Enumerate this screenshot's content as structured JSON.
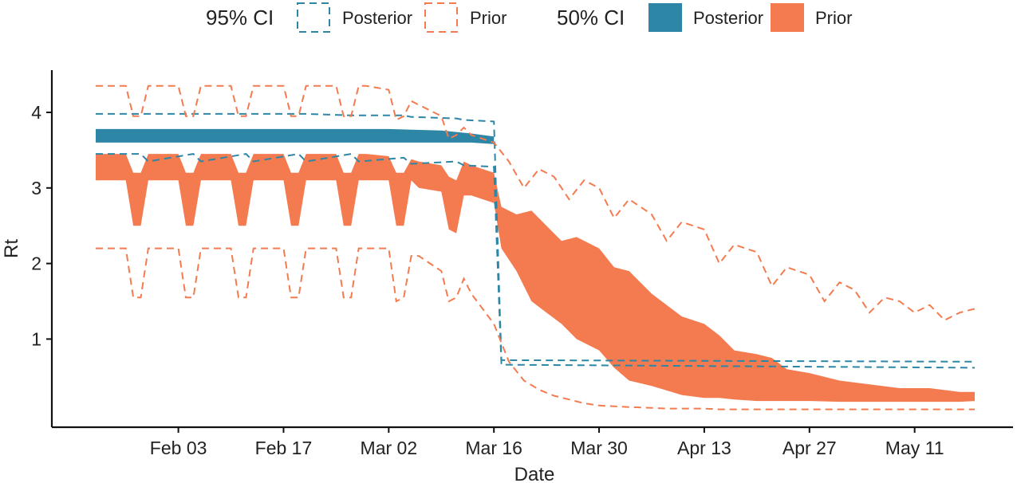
{
  "chart_data": {
    "type": "area",
    "xlabel": "Date",
    "ylabel": "Rt",
    "x_range": [
      "2020-01-23",
      "2020-05-19"
    ],
    "ylim": [
      0,
      4.5
    ],
    "x_ticks": [
      {
        "date": "2020-02-03",
        "label": "Feb 03"
      },
      {
        "date": "2020-02-17",
        "label": "Feb 17"
      },
      {
        "date": "2020-03-02",
        "label": "Mar 02"
      },
      {
        "date": "2020-03-16",
        "label": "Mar 16"
      },
      {
        "date": "2020-03-30",
        "label": "Mar 30"
      },
      {
        "date": "2020-04-13",
        "label": "Apr 13"
      },
      {
        "date": "2020-04-27",
        "label": "Apr 27"
      },
      {
        "date": "2020-05-11",
        "label": "May 11"
      }
    ],
    "y_ticks": [
      {
        "value": 1,
        "label": "1"
      },
      {
        "value": 2,
        "label": "2"
      },
      {
        "value": 3,
        "label": "3"
      },
      {
        "value": 4,
        "label": "4"
      }
    ],
    "grid": false,
    "legend": {
      "position": "top",
      "groups": [
        {
          "title": "95% CI",
          "style": "dashed",
          "items": [
            {
              "label": "Posterior",
              "color": "#2e86a6"
            },
            {
              "label": "Prior",
              "color": "#f47b4f"
            }
          ]
        },
        {
          "title": "50% CI",
          "style": "filled",
          "items": [
            {
              "label": "Posterior",
              "color": "#2e86a6"
            },
            {
              "label": "Prior",
              "color": "#f47b4f"
            }
          ]
        }
      ]
    },
    "series": [
      {
        "name": "Prior",
        "interval": "50% CI",
        "style": "filled",
        "color": "#f47b4f",
        "x": [
          "2020-01-23",
          "2020-01-27",
          "2020-01-28",
          "2020-01-29",
          "2020-01-30",
          "2020-01-31",
          "2020-02-03",
          "2020-02-04",
          "2020-02-05",
          "2020-02-06",
          "2020-02-07",
          "2020-02-10",
          "2020-02-11",
          "2020-02-12",
          "2020-02-13",
          "2020-02-14",
          "2020-02-17",
          "2020-02-18",
          "2020-02-19",
          "2020-02-20",
          "2020-02-21",
          "2020-02-24",
          "2020-02-25",
          "2020-02-26",
          "2020-02-27",
          "2020-02-28",
          "2020-03-02",
          "2020-03-03",
          "2020-03-04",
          "2020-03-05",
          "2020-03-06",
          "2020-03-09",
          "2020-03-10",
          "2020-03-11",
          "2020-03-12",
          "2020-03-13",
          "2020-03-16",
          "2020-03-17",
          "2020-03-19",
          "2020-03-21",
          "2020-03-23",
          "2020-03-25",
          "2020-03-27",
          "2020-03-30",
          "2020-04-01",
          "2020-04-03",
          "2020-04-06",
          "2020-04-08",
          "2020-04-10",
          "2020-04-13",
          "2020-04-15",
          "2020-04-17",
          "2020-04-20",
          "2020-04-22",
          "2020-04-24",
          "2020-04-27",
          "2020-05-01",
          "2020-05-05",
          "2020-05-09",
          "2020-05-13",
          "2020-05-17",
          "2020-05-19"
        ],
        "lower": [
          3.1,
          3.1,
          2.5,
          2.5,
          3.1,
          3.1,
          3.1,
          2.5,
          2.5,
          3.1,
          3.1,
          3.1,
          2.5,
          2.5,
          3.1,
          3.1,
          3.1,
          2.5,
          2.5,
          3.1,
          3.1,
          3.1,
          2.5,
          2.5,
          3.1,
          3.1,
          3.1,
          2.5,
          2.5,
          3.1,
          3.0,
          2.95,
          2.45,
          2.4,
          2.9,
          2.9,
          2.8,
          2.2,
          1.9,
          1.5,
          1.35,
          1.2,
          1.0,
          0.85,
          0.62,
          0.45,
          0.38,
          0.32,
          0.26,
          0.22,
          0.22,
          0.2,
          0.18,
          0.18,
          0.18,
          0.18,
          0.17,
          0.17,
          0.17,
          0.17,
          0.17,
          0.18
        ],
        "upper": [
          3.45,
          3.45,
          3.2,
          3.2,
          3.45,
          3.45,
          3.45,
          3.2,
          3.2,
          3.45,
          3.45,
          3.45,
          3.2,
          3.2,
          3.45,
          3.45,
          3.45,
          3.2,
          3.2,
          3.45,
          3.45,
          3.45,
          3.2,
          3.2,
          3.45,
          3.45,
          3.42,
          3.2,
          3.2,
          3.38,
          3.35,
          3.3,
          3.15,
          3.1,
          3.35,
          3.3,
          3.2,
          2.75,
          2.65,
          2.7,
          2.5,
          2.3,
          2.35,
          2.2,
          1.95,
          1.9,
          1.6,
          1.45,
          1.3,
          1.2,
          1.05,
          0.85,
          0.8,
          0.75,
          0.6,
          0.55,
          0.45,
          0.4,
          0.35,
          0.35,
          0.3,
          0.3
        ]
      },
      {
        "name": "Posterior",
        "interval": "50% CI",
        "style": "filled",
        "color": "#2e86a6",
        "x": [
          "2020-01-23",
          "2020-02-14",
          "2020-03-02",
          "2020-03-09",
          "2020-03-13",
          "2020-03-16"
        ],
        "lower": [
          3.6,
          3.6,
          3.6,
          3.6,
          3.6,
          3.58
        ],
        "upper": [
          3.78,
          3.78,
          3.78,
          3.76,
          3.72,
          3.68
        ]
      },
      {
        "name": "Posterior",
        "interval": "95% CI",
        "style": "dashed",
        "color": "#2e86a6",
        "x": [
          "2020-01-23",
          "2020-01-29",
          "2020-01-30",
          "2020-02-05",
          "2020-02-06",
          "2020-02-12",
          "2020-02-13",
          "2020-02-19",
          "2020-02-20",
          "2020-02-26",
          "2020-02-27",
          "2020-03-04",
          "2020-03-05",
          "2020-03-11",
          "2020-03-12",
          "2020-03-16",
          "2020-03-17",
          "2020-05-19"
        ],
        "lower": [
          3.45,
          3.45,
          3.35,
          3.45,
          3.35,
          3.45,
          3.35,
          3.45,
          3.35,
          3.45,
          3.35,
          3.4,
          3.32,
          3.35,
          3.3,
          3.28,
          0.66,
          0.62
        ],
        "upper": [
          3.98,
          3.98,
          3.98,
          3.98,
          3.98,
          3.98,
          3.98,
          3.98,
          3.98,
          3.96,
          3.96,
          3.96,
          3.94,
          3.92,
          3.9,
          3.88,
          0.72,
          0.7
        ]
      },
      {
        "name": "Prior",
        "interval": "95% CI",
        "style": "dashed",
        "color": "#f47b4f",
        "x": [
          "2020-01-23",
          "2020-01-27",
          "2020-01-28",
          "2020-01-29",
          "2020-01-30",
          "2020-01-31",
          "2020-02-03",
          "2020-02-04",
          "2020-02-05",
          "2020-02-06",
          "2020-02-07",
          "2020-02-10",
          "2020-02-11",
          "2020-02-12",
          "2020-02-13",
          "2020-02-14",
          "2020-02-17",
          "2020-02-18",
          "2020-02-19",
          "2020-02-20",
          "2020-02-21",
          "2020-02-24",
          "2020-02-25",
          "2020-02-26",
          "2020-02-27",
          "2020-02-28",
          "2020-03-02",
          "2020-03-03",
          "2020-03-04",
          "2020-03-05",
          "2020-03-06",
          "2020-03-09",
          "2020-03-10",
          "2020-03-11",
          "2020-03-12",
          "2020-03-13",
          "2020-03-16",
          "2020-03-18",
          "2020-03-20",
          "2020-03-22",
          "2020-03-24",
          "2020-03-26",
          "2020-03-28",
          "2020-03-30",
          "2020-04-01",
          "2020-04-03",
          "2020-04-06",
          "2020-04-08",
          "2020-04-10",
          "2020-04-13",
          "2020-04-15",
          "2020-04-17",
          "2020-04-20",
          "2020-04-22",
          "2020-04-24",
          "2020-04-27",
          "2020-04-29",
          "2020-05-01",
          "2020-05-03",
          "2020-05-05",
          "2020-05-07",
          "2020-05-09",
          "2020-05-11",
          "2020-05-13",
          "2020-05-15",
          "2020-05-17",
          "2020-05-19"
        ],
        "lower": [
          2.2,
          2.2,
          1.55,
          1.55,
          2.2,
          2.2,
          2.2,
          1.55,
          1.55,
          2.2,
          2.2,
          2.2,
          1.55,
          1.55,
          2.2,
          2.2,
          2.2,
          1.55,
          1.55,
          2.2,
          2.2,
          2.2,
          1.55,
          1.55,
          2.2,
          2.2,
          2.2,
          1.5,
          1.55,
          2.1,
          2.1,
          1.9,
          1.5,
          1.55,
          1.8,
          1.6,
          1.2,
          0.7,
          0.45,
          0.33,
          0.25,
          0.2,
          0.15,
          0.12,
          0.11,
          0.1,
          0.09,
          0.08,
          0.08,
          0.08,
          0.07,
          0.07,
          0.07,
          0.07,
          0.07,
          0.07,
          0.07,
          0.07,
          0.07,
          0.07,
          0.07,
          0.07,
          0.07,
          0.07,
          0.07,
          0.07,
          0.07
        ],
        "upper": [
          4.35,
          4.35,
          3.95,
          3.95,
          4.35,
          4.35,
          4.35,
          3.95,
          3.95,
          4.35,
          4.35,
          4.35,
          3.95,
          3.95,
          4.35,
          4.35,
          4.35,
          3.95,
          3.95,
          4.35,
          4.35,
          4.35,
          3.95,
          3.95,
          4.35,
          4.35,
          4.3,
          3.9,
          3.95,
          4.15,
          4.1,
          3.95,
          3.65,
          3.7,
          3.8,
          3.7,
          3.6,
          3.35,
          3.0,
          3.25,
          3.15,
          2.85,
          3.1,
          3.0,
          2.6,
          2.85,
          2.65,
          2.3,
          2.55,
          2.45,
          2.0,
          2.25,
          2.15,
          1.7,
          1.95,
          1.85,
          1.5,
          1.75,
          1.65,
          1.35,
          1.55,
          1.5,
          1.35,
          1.45,
          1.25,
          1.35,
          1.4
        ]
      }
    ]
  }
}
